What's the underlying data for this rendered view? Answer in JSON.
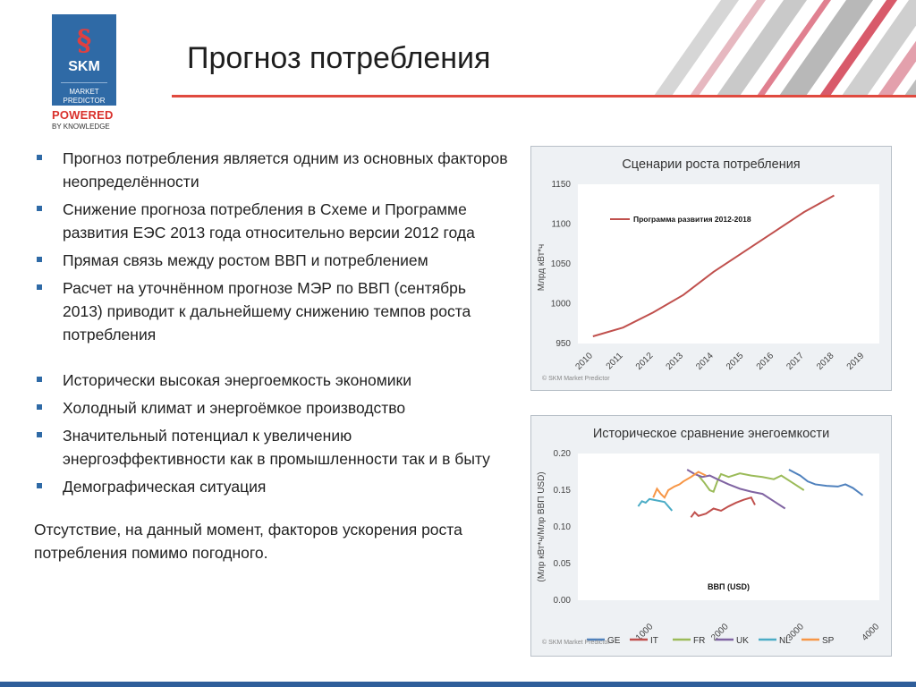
{
  "logo": {
    "brand": "SKM",
    "subtitle_line1": "MARKET",
    "subtitle_line2": "PREDICTOR",
    "powered": "POWERED",
    "by_knowledge": "BY KNOWLEDGE"
  },
  "title": "Прогноз потребления",
  "bullets_group1": [
    "Прогноз потребления является одним из основных факторов неопределённости",
    "Снижение прогноза потребления в Схеме и Программе развития ЕЭС 2013 года относительно версии 2012 года",
    "Прямая связь между ростом ВВП и потреблением",
    "Расчет  на уточнённом прогнозе МЭР по ВВП (сентябрь 2013) приводит к дальнейшему снижению темпов роста потребления"
  ],
  "bullets_group2": [
    "Исторически высокая энергоемкость экономики",
    "Холодный климат и энергоёмкое производство",
    "Значительный потенциал к увеличению энергоэффективности как в промышленности так и в быту",
    "Демографическая ситуация"
  ],
  "conclusion": "Отсутствие, на данный момент, факторов ускорения роста потребления помимо погодного.",
  "chart_data": [
    {
      "type": "line",
      "title": "Сценарии роста потребления",
      "ylabel": "Млрд кВт*ч",
      "xlabel": "",
      "x": [
        "2010",
        "2011",
        "2012",
        "2013",
        "2014",
        "2015",
        "2016",
        "2017",
        "2018",
        "2019"
      ],
      "ylim": [
        950,
        1150
      ],
      "yticks": [
        950,
        1000,
        1050,
        1100,
        1150
      ],
      "grid": false,
      "legend_position": "top-left",
      "series": [
        {
          "name": "Программа развития 2012-2018",
          "color": "#c0504d",
          "values": [
            959,
            970,
            989,
            1011,
            1040,
            1065,
            1090,
            1115,
            1136,
            null
          ]
        }
      ],
      "copyright": "© SKM Market Predictor"
    },
    {
      "type": "line",
      "title": "Историческое сравнение энегоемкости",
      "ylabel": "(Млр кВт*ч/Млр ВВП USD)",
      "xlabel": "ВВП (USD)",
      "xlim": [
        0,
        4000
      ],
      "ylim": [
        0,
        0.2
      ],
      "xticks": [
        "1000",
        "2000",
        "3000",
        "4000"
      ],
      "yticks": [
        "0.00",
        "0.05",
        "0.10",
        "0.15",
        "0.20"
      ],
      "grid": false,
      "legend_position": "bottom",
      "series": [
        {
          "name": "GE",
          "color": "#4f81bd",
          "points": [
            [
              2800,
              0.178
            ],
            [
              2950,
              0.17
            ],
            [
              3050,
              0.162
            ],
            [
              3150,
              0.158
            ],
            [
              3300,
              0.156
            ],
            [
              3450,
              0.155
            ],
            [
              3550,
              0.158
            ],
            [
              3650,
              0.153
            ],
            [
              3780,
              0.143
            ]
          ]
        },
        {
          "name": "IT",
          "color": "#c0504d",
          "points": [
            [
              1500,
              0.113
            ],
            [
              1550,
              0.12
            ],
            [
              1600,
              0.115
            ],
            [
              1700,
              0.118
            ],
            [
              1800,
              0.125
            ],
            [
              1900,
              0.122
            ],
            [
              2000,
              0.128
            ],
            [
              2100,
              0.133
            ],
            [
              2200,
              0.137
            ],
            [
              2300,
              0.14
            ],
            [
              2350,
              0.13
            ]
          ]
        },
        {
          "name": "FR",
          "color": "#9bbb59",
          "points": [
            [
              1600,
              0.17
            ],
            [
              1680,
              0.16
            ],
            [
              1750,
              0.15
            ],
            [
              1800,
              0.148
            ],
            [
              1850,
              0.162
            ],
            [
              1900,
              0.172
            ],
            [
              2000,
              0.168
            ],
            [
              2150,
              0.173
            ],
            [
              2300,
              0.17
            ],
            [
              2450,
              0.168
            ],
            [
              2600,
              0.165
            ],
            [
              2700,
              0.17
            ],
            [
              2850,
              0.16
            ],
            [
              3000,
              0.15
            ]
          ]
        },
        {
          "name": "UK",
          "color": "#8064a2",
          "points": [
            [
              1450,
              0.178
            ],
            [
              1550,
              0.172
            ],
            [
              1650,
              0.168
            ],
            [
              1750,
              0.17
            ],
            [
              1850,
              0.165
            ],
            [
              2000,
              0.158
            ],
            [
              2150,
              0.152
            ],
            [
              2300,
              0.148
            ],
            [
              2450,
              0.145
            ],
            [
              2600,
              0.135
            ],
            [
              2750,
              0.125
            ]
          ]
        },
        {
          "name": "NL",
          "color": "#4bacc6",
          "points": [
            [
              800,
              0.128
            ],
            [
              850,
              0.135
            ],
            [
              900,
              0.133
            ],
            [
              950,
              0.138
            ],
            [
              1050,
              0.136
            ],
            [
              1150,
              0.134
            ],
            [
              1200,
              0.128
            ],
            [
              1250,
              0.122
            ]
          ]
        },
        {
          "name": "SP",
          "color": "#f79646",
          "points": [
            [
              1000,
              0.14
            ],
            [
              1050,
              0.152
            ],
            [
              1100,
              0.145
            ],
            [
              1150,
              0.14
            ],
            [
              1200,
              0.15
            ],
            [
              1280,
              0.155
            ],
            [
              1350,
              0.158
            ],
            [
              1400,
              0.162
            ],
            [
              1500,
              0.168
            ],
            [
              1600,
              0.175
            ],
            [
              1700,
              0.17
            ]
          ]
        }
      ],
      "copyright": "© SKM Market Predictor"
    }
  ]
}
